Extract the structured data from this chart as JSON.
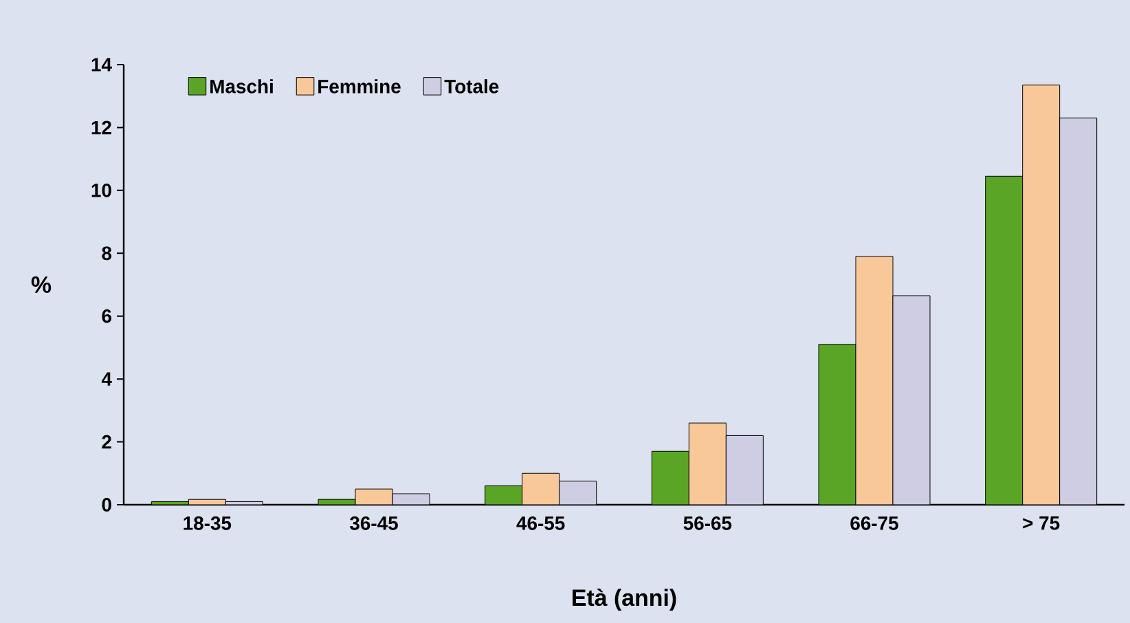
{
  "chart_data": {
    "type": "bar",
    "xlabel": "Età (anni)",
    "ylabel": "%",
    "categories": [
      "18-35",
      "36-45",
      "46-55",
      "56-65",
      "66-75",
      "> 75"
    ],
    "series": [
      {
        "name": "Maschi",
        "color": "#5aa526",
        "values": [
          0.1,
          0.17,
          0.6,
          1.7,
          5.1,
          10.45
        ]
      },
      {
        "name": "Femmine",
        "color": "#f9c899",
        "values": [
          0.17,
          0.5,
          1.0,
          2.6,
          7.9,
          13.35
        ]
      },
      {
        "name": "Totale",
        "color": "#cfcde3",
        "values": [
          0.1,
          0.35,
          0.75,
          2.2,
          6.65,
          12.3
        ]
      }
    ],
    "ylim": [
      0,
      14
    ],
    "yticks": [
      0,
      2,
      4,
      6,
      8,
      10,
      12,
      14
    ],
    "grid": false,
    "legend": "top left"
  }
}
